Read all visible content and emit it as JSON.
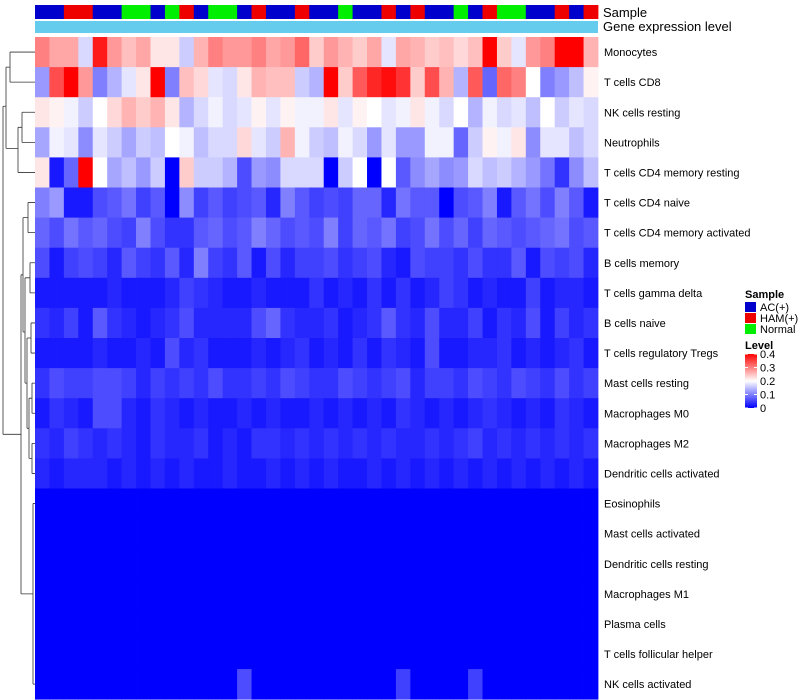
{
  "chart_data": {
    "type": "heatmap",
    "title": "",
    "annotation_labels": {
      "sample": "Sample",
      "expression": "Gene expression level"
    },
    "samples": [
      "AC(+)",
      "AC(+)",
      "HAM(+)",
      "HAM(+)",
      "AC(+)",
      "AC(+)",
      "Normal",
      "Normal",
      "AC(+)",
      "Normal",
      "HAM(+)",
      "AC(+)",
      "Normal",
      "Normal",
      "AC(+)",
      "HAM(+)",
      "AC(+)",
      "AC(+)",
      "HAM(+)",
      "AC(+)",
      "AC(+)",
      "Normal",
      "AC(+)",
      "AC(+)",
      "HAM(+)",
      "AC(+)",
      "HAM(+)",
      "AC(+)",
      "AC(+)",
      "Normal",
      "AC(+)",
      "HAM(+)",
      "Normal",
      "Normal",
      "AC(+)",
      "AC(+)",
      "HAM(+)",
      "AC(+)",
      "HAM(+)"
    ],
    "sample_legend": {
      "title": "Sample",
      "items": [
        {
          "label": "AC(+)",
          "color": "#0000cc"
        },
        {
          "label": "HAM(+)",
          "color": "#ee0000"
        },
        {
          "label": "Normal",
          "color": "#00ee00"
        }
      ]
    },
    "level_legend": {
      "title": "Level",
      "ticks": [
        "0.4",
        "0.3",
        "0.2",
        "0.1",
        "0"
      ],
      "tick_values": [
        0.4,
        0.3,
        0.2,
        0.1,
        0
      ],
      "range": [
        0,
        0.4
      ],
      "colors": {
        "low": "#0000ff",
        "mid": "#ffffff",
        "high": "#ff0000"
      }
    },
    "rows": [
      {
        "name": "Monocytes",
        "values": [
          0.3,
          0.27,
          0.27,
          0.17,
          0.38,
          0.28,
          0.25,
          0.27,
          0.22,
          0.22,
          0.16,
          0.26,
          0.3,
          0.28,
          0.28,
          0.3,
          0.27,
          0.28,
          0.32,
          0.24,
          0.28,
          0.26,
          0.24,
          0.27,
          0.18,
          0.27,
          0.26,
          0.24,
          0.25,
          0.23,
          0.25,
          0.4,
          0.24,
          0.18,
          0.28,
          0.3,
          0.42,
          0.41,
          0.26
        ]
      },
      {
        "name": "T cells CD8",
        "values": [
          0.12,
          0.34,
          0.4,
          0.28,
          0.1,
          0.14,
          0.18,
          0.22,
          0.42,
          0.1,
          0.25,
          0.23,
          0.18,
          0.17,
          0.22,
          0.26,
          0.25,
          0.25,
          0.16,
          0.14,
          0.42,
          0.24,
          0.33,
          0.37,
          0.39,
          0.36,
          0.24,
          0.34,
          0.26,
          0.14,
          0.33,
          0.08,
          0.32,
          0.3,
          0.2,
          0.1,
          0.12,
          0.15,
          0.21
        ]
      },
      {
        "name": "NK cells resting",
        "values": [
          0.22,
          0.21,
          0.19,
          0.16,
          0.2,
          0.23,
          0.26,
          0.24,
          0.26,
          0.22,
          0.14,
          0.17,
          0.19,
          0.17,
          0.18,
          0.21,
          0.18,
          0.21,
          0.19,
          0.19,
          0.22,
          0.18,
          0.21,
          0.2,
          0.18,
          0.19,
          0.22,
          0.19,
          0.17,
          0.2,
          0.14,
          0.19,
          0.17,
          0.18,
          0.15,
          0.2,
          0.16,
          0.18,
          0.17
        ]
      },
      {
        "name": "Neutrophils",
        "values": [
          0.13,
          0.19,
          0.18,
          0.11,
          0.18,
          0.16,
          0.13,
          0.16,
          0.15,
          0.2,
          0.19,
          0.15,
          0.17,
          0.17,
          0.23,
          0.18,
          0.16,
          0.26,
          0.19,
          0.16,
          0.15,
          0.19,
          0.17,
          0.12,
          0.18,
          0.12,
          0.12,
          0.19,
          0.19,
          0.08,
          0.16,
          0.21,
          0.19,
          0.22,
          0.11,
          0.18,
          0.18,
          0.15,
          0.17
        ]
      },
      {
        "name": "T cells CD4 memory resting",
        "values": [
          0.22,
          0.02,
          0.08,
          0.4,
          0.2,
          0.13,
          0.15,
          0.12,
          0.16,
          0.0,
          0.24,
          0.16,
          0.16,
          0.14,
          0.06,
          0.12,
          0.11,
          0.17,
          0.17,
          0.17,
          0.0,
          0.16,
          0.2,
          0.0,
          0.2,
          0.07,
          0.11,
          0.13,
          0.11,
          0.12,
          0.17,
          0.15,
          0.16,
          0.14,
          0.12,
          0.09,
          0.04,
          0.11,
          0.15
        ]
      },
      {
        "name": "T cells CD4 naive",
        "values": [
          0.1,
          0.12,
          0.02,
          0.02,
          0.06,
          0.07,
          0.09,
          0.05,
          0.07,
          0.0,
          0.11,
          0.05,
          0.07,
          0.05,
          0.06,
          0.07,
          0.03,
          0.1,
          0.07,
          0.05,
          0.06,
          0.05,
          0.08,
          0.08,
          0.03,
          0.09,
          0.07,
          0.07,
          0.0,
          0.06,
          0.07,
          0.1,
          0.02,
          0.07,
          0.09,
          0.06,
          0.1,
          0.07,
          0.02
        ]
      },
      {
        "name": "T cells CD4 memory activated",
        "values": [
          0.08,
          0.06,
          0.09,
          0.07,
          0.08,
          0.06,
          0.05,
          0.1,
          0.06,
          0.04,
          0.04,
          0.07,
          0.08,
          0.06,
          0.07,
          0.1,
          0.08,
          0.06,
          0.07,
          0.06,
          0.1,
          0.05,
          0.08,
          0.07,
          0.09,
          0.05,
          0.06,
          0.09,
          0.06,
          0.08,
          0.05,
          0.08,
          0.07,
          0.06,
          0.07,
          0.08,
          0.09,
          0.06,
          0.07
        ]
      },
      {
        "name": "B cells memory",
        "values": [
          0.06,
          0.02,
          0.05,
          0.06,
          0.05,
          0.03,
          0.07,
          0.05,
          0.04,
          0.07,
          0.03,
          0.1,
          0.05,
          0.04,
          0.07,
          0.02,
          0.06,
          0.03,
          0.05,
          0.05,
          0.06,
          0.04,
          0.05,
          0.06,
          0.03,
          0.02,
          0.06,
          0.05,
          0.05,
          0.04,
          0.06,
          0.04,
          0.04,
          0.07,
          0.02,
          0.06,
          0.05,
          0.06,
          0.03
        ]
      },
      {
        "name": "T cells gamma delta",
        "values": [
          0.02,
          0.02,
          0.02,
          0.02,
          0.02,
          0.03,
          0.02,
          0.02,
          0.02,
          0.03,
          0.05,
          0.04,
          0.03,
          0.02,
          0.02,
          0.03,
          0.02,
          0.02,
          0.02,
          0.04,
          0.02,
          0.03,
          0.02,
          0.04,
          0.02,
          0.04,
          0.02,
          0.03,
          0.05,
          0.04,
          0.02,
          0.03,
          0.02,
          0.02,
          0.05,
          0.02,
          0.03,
          0.03,
          0.02
        ]
      },
      {
        "name": "B cells naive",
        "values": [
          0.04,
          0.03,
          0.05,
          0.02,
          0.07,
          0.04,
          0.03,
          0.02,
          0.03,
          0.04,
          0.06,
          0.03,
          0.03,
          0.03,
          0.03,
          0.06,
          0.08,
          0.04,
          0.03,
          0.03,
          0.04,
          0.02,
          0.03,
          0.04,
          0.07,
          0.04,
          0.03,
          0.06,
          0.03,
          0.03,
          0.05,
          0.02,
          0.04,
          0.03,
          0.06,
          0.02,
          0.05,
          0.03,
          0.04
        ]
      },
      {
        "name": "T cells regulatory  Tregs",
        "values": [
          0.02,
          0.02,
          0.02,
          0.02,
          0.03,
          0.02,
          0.02,
          0.03,
          0.02,
          0.06,
          0.03,
          0.04,
          0.02,
          0.02,
          0.02,
          0.03,
          0.02,
          0.03,
          0.04,
          0.02,
          0.03,
          0.02,
          0.04,
          0.02,
          0.04,
          0.03,
          0.02,
          0.06,
          0.02,
          0.02,
          0.03,
          0.03,
          0.04,
          0.02,
          0.03,
          0.02,
          0.03,
          0.04,
          0.02
        ]
      },
      {
        "name": "Mast cells resting",
        "values": [
          0.04,
          0.06,
          0.05,
          0.05,
          0.06,
          0.06,
          0.05,
          0.03,
          0.05,
          0.04,
          0.05,
          0.04,
          0.06,
          0.04,
          0.04,
          0.05,
          0.04,
          0.06,
          0.05,
          0.04,
          0.04,
          0.06,
          0.05,
          0.04,
          0.05,
          0.06,
          0.03,
          0.05,
          0.05,
          0.04,
          0.06,
          0.05,
          0.04,
          0.06,
          0.05,
          0.04,
          0.06,
          0.04,
          0.05
        ]
      },
      {
        "name": "Macrophages M0",
        "values": [
          0.02,
          0.04,
          0.03,
          0.02,
          0.06,
          0.06,
          0.03,
          0.02,
          0.04,
          0.03,
          0.02,
          0.03,
          0.02,
          0.02,
          0.03,
          0.02,
          0.03,
          0.02,
          0.02,
          0.03,
          0.02,
          0.03,
          0.02,
          0.03,
          0.02,
          0.04,
          0.03,
          0.02,
          0.03,
          0.02,
          0.03,
          0.04,
          0.03,
          0.02,
          0.03,
          0.02,
          0.04,
          0.03,
          0.02
        ]
      },
      {
        "name": "Macrophages M2",
        "values": [
          0.04,
          0.03,
          0.05,
          0.04,
          0.03,
          0.04,
          0.03,
          0.02,
          0.04,
          0.03,
          0.03,
          0.04,
          0.02,
          0.03,
          0.02,
          0.04,
          0.04,
          0.03,
          0.04,
          0.03,
          0.04,
          0.03,
          0.04,
          0.03,
          0.04,
          0.03,
          0.03,
          0.04,
          0.03,
          0.04,
          0.05,
          0.03,
          0.04,
          0.03,
          0.04,
          0.03,
          0.04,
          0.03,
          0.04
        ]
      },
      {
        "name": "Dendritic cells activated",
        "values": [
          0.03,
          0.02,
          0.03,
          0.03,
          0.03,
          0.02,
          0.03,
          0.02,
          0.03,
          0.02,
          0.03,
          0.02,
          0.02,
          0.03,
          0.02,
          0.02,
          0.03,
          0.02,
          0.03,
          0.02,
          0.03,
          0.02,
          0.02,
          0.03,
          0.02,
          0.03,
          0.02,
          0.03,
          0.02,
          0.03,
          0.02,
          0.03,
          0.02,
          0.03,
          0.02,
          0.03,
          0.02,
          0.03,
          0.02
        ]
      },
      {
        "name": "Eosinophils",
        "values": [
          0.0,
          0.0,
          0.0,
          0.0,
          0.0,
          0.0,
          0.0,
          0.0,
          0.0,
          0.0,
          0.0,
          0.0,
          0.0,
          0.0,
          0.0,
          0.0,
          0.0,
          0.0,
          0.0,
          0.0,
          0.0,
          0.0,
          0.0,
          0.0,
          0.0,
          0.0,
          0.0,
          0.0,
          0.0,
          0.0,
          0.0,
          0.0,
          0.0,
          0.0,
          0.0,
          0.0,
          0.0,
          0.0,
          0.0
        ]
      },
      {
        "name": "Mast cells activated",
        "values": [
          0.0,
          0.0,
          0.0,
          0.0,
          0.0,
          0.0,
          0.0,
          0.0,
          0.0,
          0.0,
          0.0,
          0.0,
          0.0,
          0.0,
          0.0,
          0.0,
          0.0,
          0.0,
          0.0,
          0.0,
          0.0,
          0.0,
          0.0,
          0.0,
          0.0,
          0.0,
          0.0,
          0.0,
          0.0,
          0.0,
          0.0,
          0.0,
          0.0,
          0.0,
          0.0,
          0.0,
          0.0,
          0.0,
          0.0
        ]
      },
      {
        "name": "Dendritic cells resting",
        "values": [
          0.0,
          0.0,
          0.0,
          0.0,
          0.0,
          0.0,
          0.0,
          0.0,
          0.0,
          0.0,
          0.0,
          0.0,
          0.0,
          0.0,
          0.0,
          0.0,
          0.0,
          0.0,
          0.0,
          0.0,
          0.0,
          0.0,
          0.0,
          0.0,
          0.0,
          0.0,
          0.0,
          0.0,
          0.0,
          0.0,
          0.0,
          0.0,
          0.0,
          0.0,
          0.0,
          0.0,
          0.0,
          0.0,
          0.0
        ]
      },
      {
        "name": "Macrophages M1",
        "values": [
          0.0,
          0.0,
          0.0,
          0.0,
          0.0,
          0.0,
          0.0,
          0.0,
          0.0,
          0.0,
          0.0,
          0.0,
          0.0,
          0.0,
          0.0,
          0.0,
          0.0,
          0.0,
          0.0,
          0.0,
          0.0,
          0.0,
          0.0,
          0.0,
          0.0,
          0.0,
          0.0,
          0.0,
          0.0,
          0.0,
          0.0,
          0.0,
          0.0,
          0.0,
          0.0,
          0.0,
          0.0,
          0.0,
          0.0
        ]
      },
      {
        "name": "Plasma cells",
        "values": [
          0.0,
          0.0,
          0.0,
          0.0,
          0.0,
          0.0,
          0.0,
          0.0,
          0.0,
          0.0,
          0.0,
          0.0,
          0.0,
          0.0,
          0.0,
          0.0,
          0.0,
          0.0,
          0.0,
          0.0,
          0.0,
          0.0,
          0.0,
          0.0,
          0.0,
          0.0,
          0.0,
          0.0,
          0.0,
          0.0,
          0.0,
          0.0,
          0.0,
          0.0,
          0.0,
          0.0,
          0.0,
          0.0,
          0.0
        ]
      },
      {
        "name": "T cells follicular helper",
        "values": [
          0.0,
          0.0,
          0.0,
          0.0,
          0.0,
          0.0,
          0.0,
          0.0,
          0.0,
          0.0,
          0.0,
          0.0,
          0.0,
          0.0,
          0.0,
          0.0,
          0.0,
          0.0,
          0.0,
          0.0,
          0.0,
          0.0,
          0.0,
          0.0,
          0.0,
          0.0,
          0.0,
          0.0,
          0.0,
          0.0,
          0.0,
          0.0,
          0.0,
          0.0,
          0.0,
          0.0,
          0.0,
          0.0,
          0.0
        ]
      },
      {
        "name": "NK cells activated",
        "values": [
          0.0,
          0.0,
          0.0,
          0.0,
          0.0,
          0.0,
          0.0,
          0.0,
          0.0,
          0.0,
          0.0,
          0.0,
          0.0,
          0.0,
          0.06,
          0.0,
          0.0,
          0.0,
          0.0,
          0.0,
          0.0,
          0.0,
          0.0,
          0.0,
          0.0,
          0.05,
          0.0,
          0.0,
          0.0,
          0.0,
          0.05,
          0.0,
          0.0,
          0.0,
          0.0,
          0.0,
          0.0,
          0.0,
          0.0
        ]
      }
    ]
  }
}
